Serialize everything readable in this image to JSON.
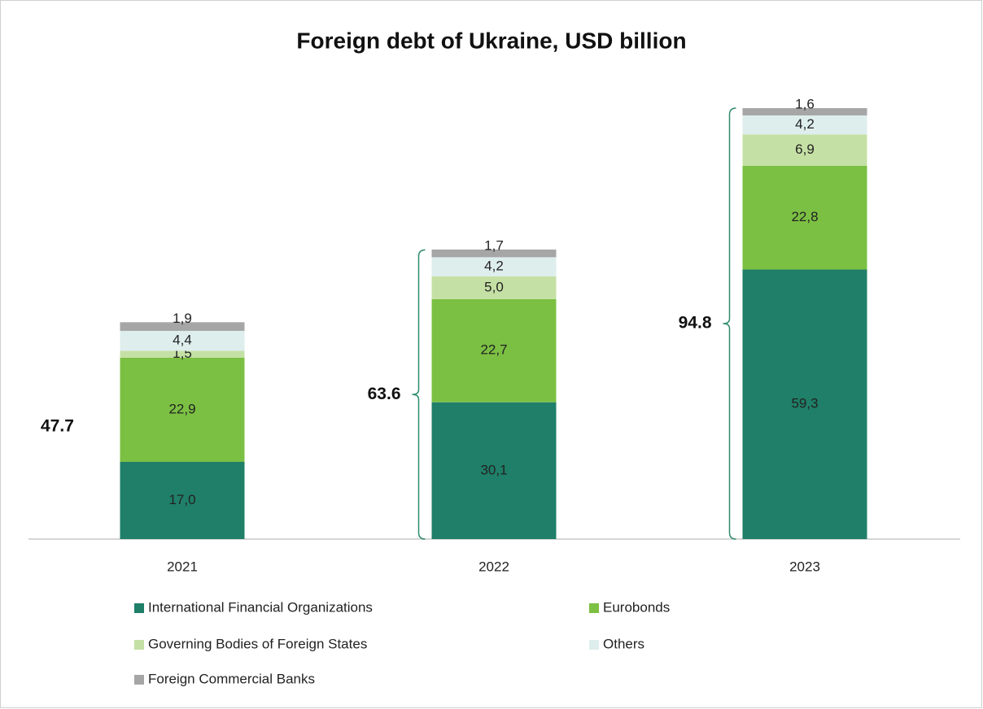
{
  "chart_data": {
    "type": "stacked-bar",
    "title": "Foreign debt of Ukraine, USD billion",
    "categories": [
      "2021",
      "2022",
      "2023"
    ],
    "series": [
      {
        "name": "International Financial Organizations",
        "color": "#1f7f68",
        "values": [
          17.0,
          30.1,
          59.3
        ],
        "value_labels": [
          "17,0",
          "30,1",
          "59,3"
        ]
      },
      {
        "name": "Eurobonds",
        "color": "#7bc043",
        "values": [
          22.9,
          22.7,
          22.8
        ],
        "value_labels": [
          "22,9",
          "22,7",
          "22,8"
        ]
      },
      {
        "name": "Governing Bodies of Foreign States",
        "color": "#c5e0a5",
        "values": [
          1.5,
          5.0,
          6.9
        ],
        "value_labels": [
          "1,5",
          "5,0",
          "6,9"
        ]
      },
      {
        "name": "Others",
        "color": "#deeeec",
        "values": [
          4.4,
          4.2,
          4.2
        ],
        "value_labels": [
          "4,4",
          "4,2",
          "4,2"
        ]
      },
      {
        "name": "Foreign Commercial Banks",
        "color": "#a6a6a6",
        "values": [
          1.9,
          1.7,
          1.6
        ],
        "value_labels": [
          "1,9",
          "1,7",
          "1,6"
        ]
      }
    ],
    "totals": [
      47.7,
      63.6,
      94.8
    ]
  }
}
